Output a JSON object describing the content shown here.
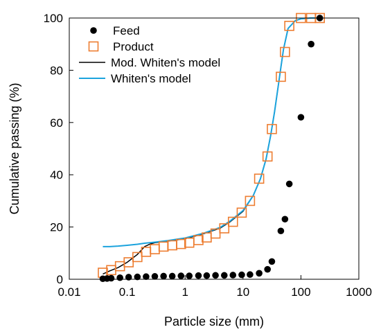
{
  "chart_data": {
    "type": "scatter",
    "xlabel": "Particle size (mm)",
    "ylabel": "Cumulative passing (%)",
    "x_scale": "log",
    "xlim": [
      0.01,
      1000
    ],
    "ylim": [
      0,
      100
    ],
    "x_ticks": [
      0.01,
      0.1,
      1,
      10,
      100,
      1000
    ],
    "x_tick_labels": [
      "0.01",
      "0.1",
      "1",
      "10",
      "100",
      "1000"
    ],
    "y_ticks": [
      0,
      20,
      40,
      60,
      80,
      100
    ],
    "y_tick_labels": [
      "0",
      "20",
      "40",
      "60",
      "80",
      "100"
    ],
    "grid": false,
    "legend_position": "top-left",
    "series": [
      {
        "name": "Feed",
        "kind": "marker-filled-circle",
        "color": "#000000",
        "x": [
          0.038,
          0.045,
          0.053,
          0.075,
          0.106,
          0.15,
          0.212,
          0.3,
          0.425,
          0.6,
          0.85,
          1.18,
          1.7,
          2.36,
          3.35,
          4.75,
          6.7,
          9.5,
          13.2,
          19,
          26.5,
          31.5,
          45,
          53,
          63,
          100,
          150,
          212
        ],
        "y": [
          0.2,
          0.3,
          0.4,
          0.6,
          0.8,
          0.9,
          1.0,
          1.1,
          1.2,
          1.2,
          1.3,
          1.3,
          1.4,
          1.4,
          1.5,
          1.5,
          1.6,
          1.7,
          1.8,
          2.3,
          3.8,
          6.8,
          18.5,
          23,
          36.5,
          62,
          90,
          100
        ]
      },
      {
        "name": "Product",
        "kind": "marker-open-square",
        "color": "#ED7D31",
        "x": [
          0.038,
          0.053,
          0.075,
          0.106,
          0.15,
          0.212,
          0.3,
          0.425,
          0.6,
          0.85,
          1.18,
          1.7,
          2.36,
          3.35,
          4.75,
          6.7,
          9.5,
          13.2,
          19,
          26.5,
          31.5,
          45,
          53,
          63,
          100,
          150,
          212
        ],
        "y": [
          2.5,
          3.5,
          5.0,
          6.5,
          8.5,
          10.5,
          11.5,
          12.5,
          13,
          13.5,
          14,
          15,
          16,
          17.5,
          19.5,
          22,
          25.5,
          30,
          38.5,
          47,
          57.5,
          77.5,
          87,
          97,
          100,
          100,
          100
        ]
      },
      {
        "name": "Mod. Whiten's model",
        "kind": "line",
        "color": "#000000",
        "x": [
          0.038,
          0.05,
          0.07,
          0.1,
          0.15,
          0.2,
          0.25,
          0.3,
          0.5,
          1,
          2,
          4,
          6,
          10,
          15,
          20,
          25,
          30,
          35,
          40,
          45,
          50,
          60,
          80,
          100,
          150,
          212
        ],
        "y": [
          2.0,
          3.2,
          4.5,
          6.5,
          9.5,
          12.5,
          13.5,
          14.0,
          14.6,
          15.5,
          17.3,
          19.5,
          22.0,
          26.0,
          32.0,
          38.5,
          46.0,
          55.0,
          64.0,
          73.0,
          81.0,
          88.0,
          96.0,
          99.0,
          99.7,
          100,
          100
        ]
      },
      {
        "name": "Whiten's model",
        "kind": "line",
        "color": "#1BA3DD",
        "x": [
          0.038,
          0.05,
          0.07,
          0.1,
          0.15,
          0.2,
          0.3,
          0.5,
          1,
          2,
          4,
          6,
          10,
          15,
          20,
          25,
          30,
          35,
          40,
          45,
          50,
          60,
          80,
          100,
          150,
          212
        ],
        "y": [
          12.5,
          12.5,
          12.7,
          13.0,
          13.4,
          13.8,
          14.2,
          14.8,
          15.8,
          17.5,
          19.8,
          22.3,
          26.3,
          32.0,
          38.5,
          46.0,
          55.0,
          64.0,
          73.0,
          81.0,
          88.0,
          96.0,
          99.0,
          99.7,
          100,
          100
        ]
      }
    ]
  }
}
